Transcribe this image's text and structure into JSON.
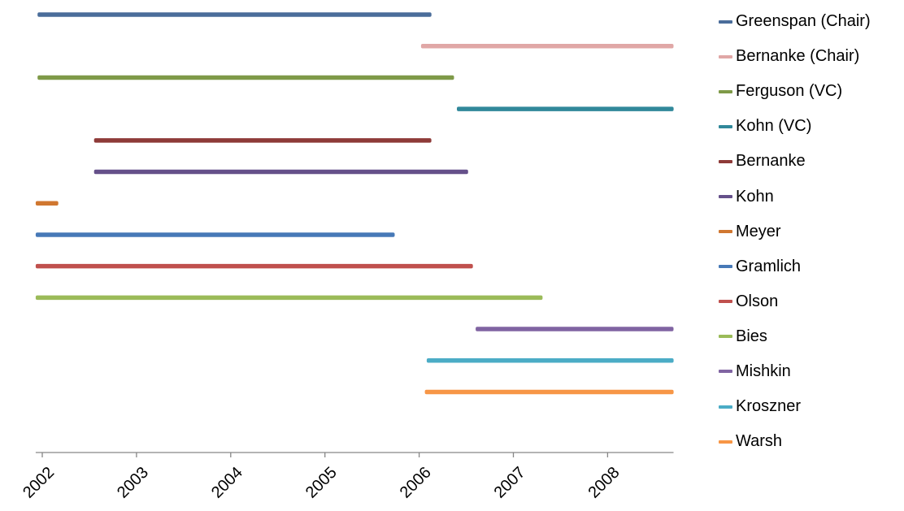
{
  "chart_data": {
    "type": "timeline",
    "title": "",
    "xlabel": "",
    "ylabel": "",
    "xlim": [
      2001.93,
      2008.7
    ],
    "x_ticks": [
      "2002",
      "2003",
      "2004",
      "2005",
      "2006",
      "2007",
      "2008"
    ],
    "legend_position": "right",
    "grid": false,
    "series": [
      {
        "name": "Greenspan (Chair)",
        "start": 2001.95,
        "end": 2006.13,
        "color": "#4a6d9a"
      },
      {
        "name": "Bernanke (Chair)",
        "start": 2006.02,
        "end": 2008.7,
        "color": "#e0a7a6"
      },
      {
        "name": "Ferguson (VC)",
        "start": 2001.95,
        "end": 2006.37,
        "color": "#7f9a48"
      },
      {
        "name": "Kohn (VC)",
        "start": 2006.4,
        "end": 2008.7,
        "color": "#31889a"
      },
      {
        "name": "Bernanke",
        "start": 2002.55,
        "end": 2006.13,
        "color": "#8e3a38"
      },
      {
        "name": "Kohn",
        "start": 2002.55,
        "end": 2006.52,
        "color": "#65508a"
      },
      {
        "name": "Meyer",
        "start": 2001.93,
        "end": 2002.17,
        "color": "#d07730"
      },
      {
        "name": "Gramlich",
        "start": 2001.93,
        "end": 2005.74,
        "color": "#4779b7"
      },
      {
        "name": "Olson",
        "start": 2001.93,
        "end": 2006.57,
        "color": "#c0504d"
      },
      {
        "name": "Bies",
        "start": 2001.93,
        "end": 2007.31,
        "color": "#9bbb59"
      },
      {
        "name": "Mishkin",
        "start": 2006.6,
        "end": 2008.7,
        "color": "#8064a2"
      },
      {
        "name": "Kroszner",
        "start": 2006.08,
        "end": 2008.7,
        "color": "#4bacc6"
      },
      {
        "name": "Warsh",
        "start": 2006.06,
        "end": 2008.7,
        "color": "#f79646"
      }
    ]
  }
}
